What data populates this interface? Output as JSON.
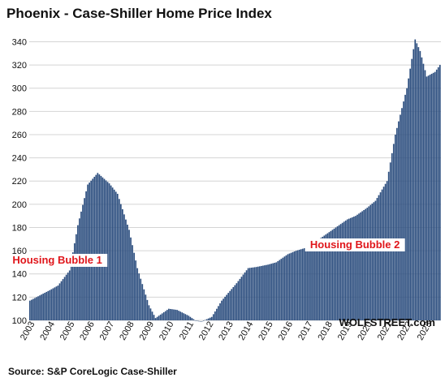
{
  "chart_data": {
    "type": "bar",
    "title": "Phoenix - Case-Shiller Home Price Index",
    "xlabel": "",
    "ylabel": "",
    "ylim": [
      100,
      348
    ],
    "y_ticks": [
      100,
      120,
      140,
      160,
      180,
      200,
      220,
      240,
      260,
      280,
      300,
      320,
      340
    ],
    "x_tick_labels": [
      "2003",
      "2004",
      "2005",
      "2006",
      "2007",
      "2008",
      "2009",
      "2010",
      "2011",
      "2012",
      "2013",
      "2014",
      "2015",
      "2016",
      "2017",
      "2018",
      "2019",
      "2020",
      "2021",
      "2022",
      "2023"
    ],
    "frequency": "monthly",
    "start": "2003-01",
    "grid": "horizontal",
    "bar_color": "#2b4d7e",
    "annotations": [
      {
        "text": "Housing Bubble 1",
        "at": "2004-06"
      },
      {
        "text": "Housing Bubble 2",
        "at": "2019-06"
      }
    ],
    "source": "Source: S&P CoreLogic Case-Shiller",
    "brand": "WOLFSTREET.com",
    "keypoints": [
      [
        "2003-01",
        117
      ],
      [
        "2004-01",
        126
      ],
      [
        "2004-06",
        130
      ],
      [
        "2005-01",
        143
      ],
      [
        "2005-06",
        182
      ],
      [
        "2005-12",
        217
      ],
      [
        "2006-06",
        227
      ],
      [
        "2007-01",
        218
      ],
      [
        "2007-06",
        209
      ],
      [
        "2008-01",
        178
      ],
      [
        "2008-06",
        145
      ],
      [
        "2009-01",
        113
      ],
      [
        "2009-05",
        102
      ],
      [
        "2010-01",
        110
      ],
      [
        "2010-06",
        109
      ],
      [
        "2011-01",
        104
      ],
      [
        "2011-05",
        100
      ],
      [
        "2011-09",
        99
      ],
      [
        "2012-03",
        103
      ],
      [
        "2012-09",
        117
      ],
      [
        "2013-06",
        132
      ],
      [
        "2014-01",
        145
      ],
      [
        "2014-06",
        146
      ],
      [
        "2015-01",
        148
      ],
      [
        "2015-06",
        150
      ],
      [
        "2016-01",
        157
      ],
      [
        "2016-06",
        160
      ],
      [
        "2017-01",
        163
      ],
      [
        "2017-06",
        168
      ],
      [
        "2018-01",
        175
      ],
      [
        "2018-06",
        180
      ],
      [
        "2019-01",
        187
      ],
      [
        "2019-06",
        190
      ],
      [
        "2020-01",
        197
      ],
      [
        "2020-06",
        203
      ],
      [
        "2021-01",
        220
      ],
      [
        "2021-06",
        260
      ],
      [
        "2022-01",
        300
      ],
      [
        "2022-06",
        342
      ],
      [
        "2022-09",
        332
      ],
      [
        "2023-01",
        310
      ],
      [
        "2023-06",
        314
      ],
      [
        "2023-09",
        320
      ]
    ]
  }
}
